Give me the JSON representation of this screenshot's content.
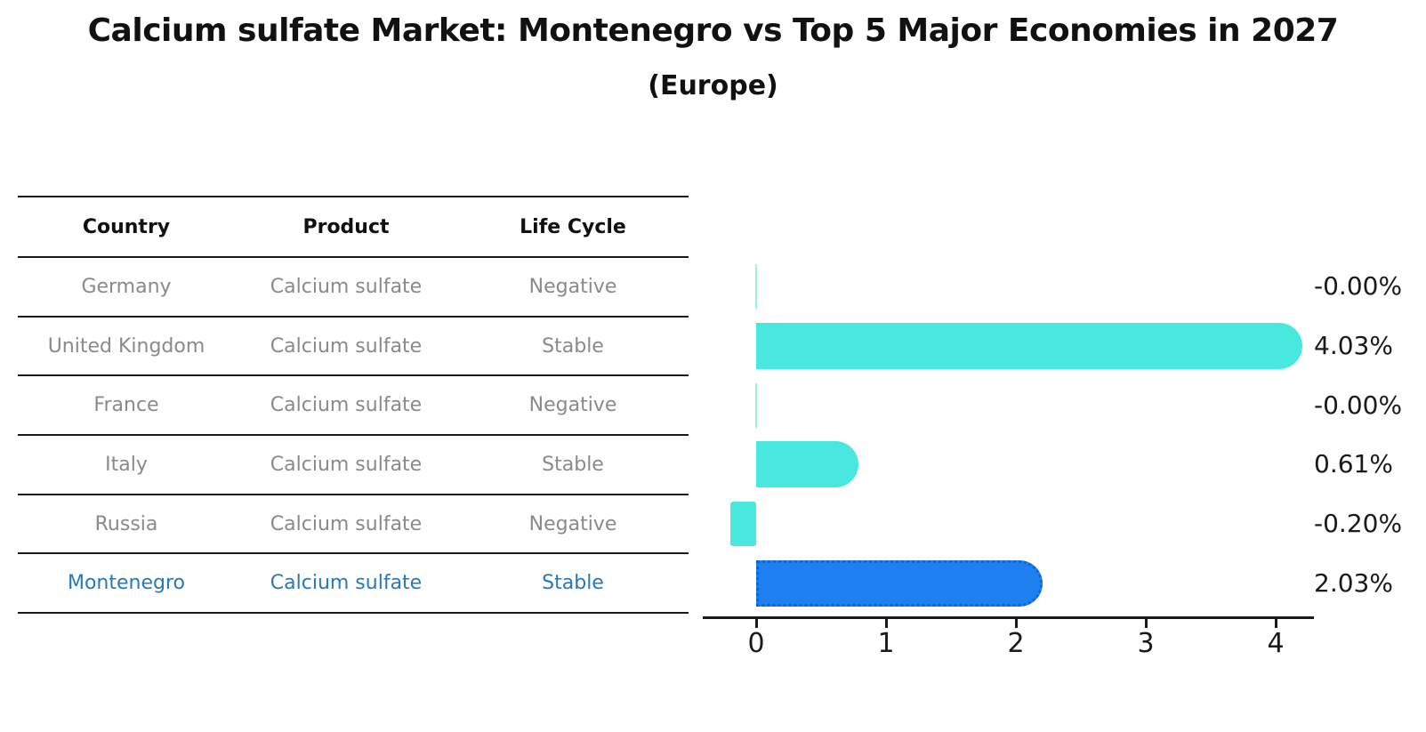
{
  "title": "Calcium sulfate Market: Montenegro vs Top 5 Major Economies in 2027",
  "subtitle": "(Europe)",
  "table": {
    "columns": [
      "Country",
      "Product",
      "Life Cycle"
    ],
    "rows": [
      {
        "country": "Germany",
        "product": "Calcium sulfate",
        "life_cycle": "Negative",
        "highlight": false
      },
      {
        "country": "United Kingdom",
        "product": "Calcium sulfate",
        "life_cycle": "Stable",
        "highlight": false
      },
      {
        "country": "France",
        "product": "Calcium sulfate",
        "life_cycle": "Negative",
        "highlight": false
      },
      {
        "country": "Italy",
        "product": "Calcium sulfate",
        "life_cycle": "Stable",
        "highlight": false
      },
      {
        "country": "Russia",
        "product": "Calcium sulfate",
        "life_cycle": "Negative",
        "highlight": false
      },
      {
        "country": "Montenegro",
        "product": "Calcium sulfate",
        "life_cycle": "Stable",
        "highlight": true
      }
    ]
  },
  "chart_data": {
    "type": "bar",
    "orientation": "horizontal",
    "title": "Calcium sulfate Market: Montenegro vs Top 5 Major Economies in 2027",
    "subtitle": "(Europe)",
    "categories": [
      "Germany",
      "United Kingdom",
      "France",
      "Italy",
      "Russia",
      "Montenegro"
    ],
    "values": [
      -0.0,
      4.03,
      -0.0,
      0.61,
      -0.2,
      2.03
    ],
    "value_labels": [
      "-0.00%",
      "4.03%",
      "-0.00%",
      "0.61%",
      "-0.20%",
      "2.03%"
    ],
    "x_ticks": [
      0,
      1,
      2,
      3,
      4
    ],
    "xlim": [
      -0.41,
      4.29
    ],
    "grid": false,
    "legend": false,
    "highlight_index": 5,
    "bar_colors": [
      "#49e8df",
      "#49e8df",
      "#49e8df",
      "#49e8df",
      "#49e8df",
      "#1e80f0"
    ]
  },
  "colors": {
    "bar_cyan": "#49e8df",
    "bar_blue": "#1e80f0",
    "blue_dotted_border": "#0c64d6",
    "highlight_text": "#2878bc",
    "muted_text": "#8a8a8a",
    "ink": "#1a1a1a"
  }
}
